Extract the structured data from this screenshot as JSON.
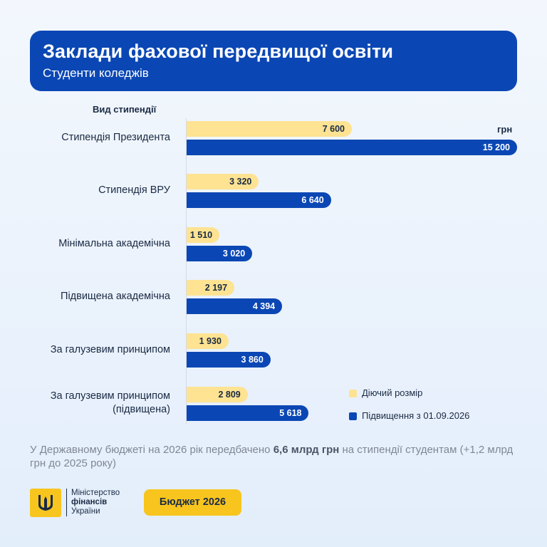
{
  "header": {
    "title": "Заклади фахової передвищої освіти",
    "subtitle": "Студенти коледжів"
  },
  "chart_data": {
    "type": "bar",
    "orientation": "horizontal",
    "category_header": "Вид стипендії",
    "unit": "грн",
    "categories": [
      "Стипендія Президента",
      "Стипендія ВРУ",
      "Мінімальна академічна",
      "Підвищена академічна",
      "За галузевим принципом",
      "За галузевим принципом (підвищена)"
    ],
    "series": [
      {
        "name": "Діючий розмір",
        "values": [
          7600,
          3320,
          1510,
          2197,
          1930,
          2809
        ],
        "labels": [
          "7 600",
          "3 320",
          "1 510",
          "2 197",
          "1 930",
          "2 809"
        ],
        "color": "#fde392"
      },
      {
        "name": "Підвищення з 01.09.2026",
        "values": [
          15200,
          6640,
          3020,
          4394,
          3860,
          5618
        ],
        "labels": [
          "15 200",
          "6 640",
          "3 020",
          "4 394",
          "3 860",
          "5 618"
        ],
        "color": "#0b47b4"
      }
    ],
    "xlim": [
      0,
      15200
    ],
    "legend_position": "bottom-right"
  },
  "category_labels": [
    [
      "Стипендія Президента"
    ],
    [
      "Стипендія ВРУ"
    ],
    [
      "Мінімальна академічна"
    ],
    [
      "Підвищена академічна"
    ],
    [
      "За галузевим принципом"
    ],
    [
      "За галузевим принципом",
      "(підвищена)"
    ]
  ],
  "note": {
    "before": "У Державному бюджеті на 2026 рік передбачено ",
    "bold": "6,6 млрд грн",
    "after": " на стипендії студентам (+1,2 млрд грн до 2025 року)"
  },
  "footer": {
    "ministry_line1": "Міністерство",
    "ministry_line2": "фінансів",
    "ministry_line3": "України",
    "badge": "Бюджет 2026"
  },
  "colors": {
    "brand_blue": "#0b47b4",
    "brand_yellow": "#f7c51e"
  }
}
